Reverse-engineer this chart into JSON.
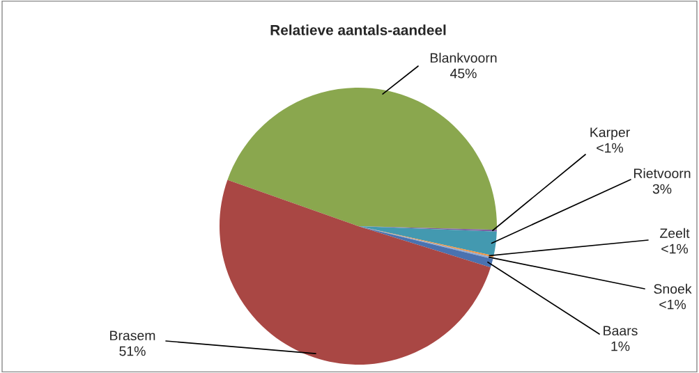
{
  "chart_data": {
    "type": "pie",
    "title": "Relatieve aantals-aandeel",
    "categories": [
      "Blankvoorn",
      "Karper",
      "Rietvoorn",
      "Zeelt",
      "Snoek",
      "Baars",
      "Brasem"
    ],
    "values": [
      45,
      0.2,
      2.8,
      0.2,
      0.2,
      1,
      50.6
    ],
    "value_labels": [
      "45%",
      "<1%",
      "3%",
      "<1%",
      "<1%",
      "1%",
      "51%"
    ],
    "colors": [
      "#8aa74e",
      "#7d5fa0",
      "#4399b0",
      "#f0933f",
      "#93a9cf",
      "#4a72b0",
      "#a94744"
    ]
  }
}
